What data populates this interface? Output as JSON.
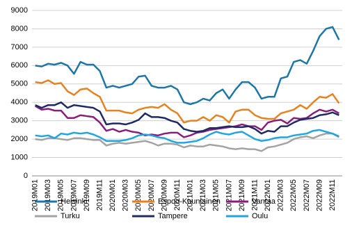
{
  "chart_data": {
    "type": "line",
    "categories": [
      "2019M01",
      null,
      "2019M03",
      null,
      "2019M05",
      null,
      "2019M07",
      null,
      "2019M09",
      null,
      "2019M11",
      null,
      "2020M01",
      null,
      "2020M03",
      null,
      "2020M05",
      null,
      "2020M07",
      null,
      "2020M09",
      null,
      "2020M11",
      null,
      "2021M01",
      null,
      "2021M03",
      null,
      "2021M05",
      null,
      "2021M07",
      null,
      "2021M09",
      null,
      "2021M11",
      null,
      "2022M01",
      null,
      "2022M03",
      null,
      "2022M05",
      null,
      "2022M07",
      null,
      "2022M09",
      null,
      "2022M11",
      null
    ],
    "series": [
      {
        "name": "Helsinki",
        "color": "#1b76a9",
        "values": [
          6000,
          5950,
          6100,
          6050,
          6150,
          6000,
          5550,
          6200,
          6050,
          6050,
          5700,
          4800,
          4900,
          4800,
          4900,
          5000,
          5400,
          5450,
          4900,
          4800,
          4800,
          4900,
          4700,
          4000,
          3900,
          4000,
          4200,
          4100,
          4500,
          4700,
          4200,
          4700,
          5100,
          5100,
          4800,
          4200,
          4300,
          4300,
          5300,
          5400,
          6200,
          6300,
          6100,
          6800,
          7600,
          8000,
          8100,
          7400
        ]
      },
      {
        "name": "Espoo-Kauniainen",
        "color": "#e8821e",
        "values": [
          5100,
          5050,
          5200,
          5000,
          5050,
          4600,
          4400,
          4700,
          4750,
          4500,
          4300,
          3550,
          3550,
          3550,
          3450,
          3400,
          3600,
          3700,
          3750,
          3700,
          3900,
          3600,
          3400,
          2900,
          3000,
          3000,
          3200,
          3000,
          3300,
          3200,
          2900,
          3500,
          3600,
          3600,
          3300,
          3150,
          3100,
          3100,
          3400,
          3500,
          3600,
          3850,
          3650,
          4000,
          4300,
          4250,
          4450,
          3950
        ]
      },
      {
        "name": "Vantaa",
        "color": "#8c1c7c",
        "values": [
          3800,
          3600,
          3650,
          3550,
          3550,
          3150,
          3150,
          3300,
          3250,
          3200,
          2900,
          2450,
          2550,
          2400,
          2500,
          2400,
          2350,
          2200,
          2250,
          2200,
          2300,
          2350,
          2350,
          2100,
          2200,
          2350,
          2400,
          2500,
          2550,
          2600,
          2650,
          2700,
          2800,
          2700,
          2700,
          2500,
          2900,
          3000,
          3050,
          2850,
          3150,
          3100,
          3150,
          3400,
          3600,
          3500,
          3600,
          3400
        ]
      },
      {
        "name": "Turku",
        "color": "#a3a3a3",
        "values": [
          2000,
          1950,
          2050,
          2050,
          2000,
          1950,
          2050,
          2050,
          2000,
          1950,
          1950,
          1650,
          1750,
          1800,
          1750,
          1800,
          1850,
          1900,
          1800,
          1650,
          1750,
          1750,
          1700,
          1550,
          1650,
          1600,
          1600,
          1700,
          1650,
          1600,
          1500,
          1450,
          1500,
          1450,
          1450,
          1350,
          1550,
          1600,
          1700,
          1800,
          2000,
          2100,
          2150,
          2050,
          2200,
          2300,
          2300,
          2100
        ]
      },
      {
        "name": "Tampere",
        "color": "#1e2a68",
        "values": [
          3850,
          3700,
          3850,
          3850,
          4000,
          3700,
          3850,
          3800,
          3750,
          3700,
          3500,
          2800,
          2850,
          2850,
          2800,
          2900,
          3050,
          3400,
          3200,
          3200,
          3150,
          3000,
          2900,
          2550,
          2450,
          2400,
          2450,
          2600,
          2600,
          2650,
          2700,
          2650,
          2650,
          2700,
          2550,
          2300,
          2450,
          2400,
          2700,
          2700,
          2900,
          3050,
          3100,
          3150,
          3300,
          3350,
          3450,
          3300
        ]
      },
      {
        "name": "Oulu",
        "color": "#1fa6e0",
        "values": [
          2200,
          2150,
          2200,
          2050,
          2300,
          2250,
          2350,
          2300,
          2350,
          2250,
          2100,
          1900,
          1900,
          1900,
          1950,
          2050,
          2200,
          2250,
          2200,
          2100,
          2050,
          1900,
          1800,
          1800,
          1850,
          1900,
          2050,
          2250,
          2400,
          2300,
          2250,
          2350,
          2400,
          2200,
          2000,
          1900,
          1950,
          2050,
          2100,
          2100,
          2200,
          2250,
          2300,
          2450,
          2500,
          2400,
          2300,
          2150
        ]
      }
    ],
    "ylim": [
      0,
      9000
    ],
    "yticks": [
      0,
      1000,
      2000,
      3000,
      4000,
      5000,
      6000,
      7000,
      8000,
      9000
    ],
    "grid": true,
    "legend": "bottom"
  }
}
